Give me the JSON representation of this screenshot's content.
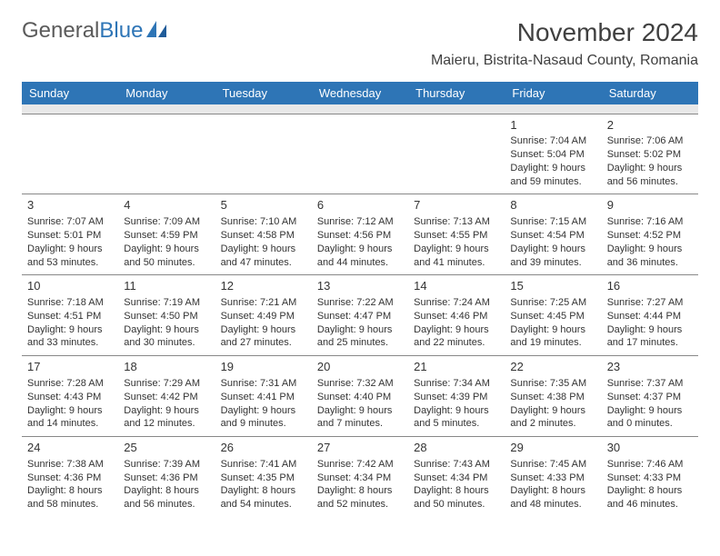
{
  "logo": {
    "text1": "General",
    "text2": "Blue"
  },
  "title": "November 2024",
  "location": "Maieru, Bistrita-Nasaud County, Romania",
  "colors": {
    "header_bg": "#2e75b6",
    "header_text": "#ffffff",
    "spacer_bg": "#e8e8e8",
    "border": "#888888",
    "text": "#333333",
    "logo_gray": "#5a5a5a",
    "logo_blue": "#2e75b6"
  },
  "day_labels": [
    "Sunday",
    "Monday",
    "Tuesday",
    "Wednesday",
    "Thursday",
    "Friday",
    "Saturday"
  ],
  "weeks": [
    [
      null,
      null,
      null,
      null,
      null,
      {
        "n": "1",
        "sr": "Sunrise: 7:04 AM",
        "ss": "Sunset: 5:04 PM",
        "dl": "Daylight: 9 hours and 59 minutes."
      },
      {
        "n": "2",
        "sr": "Sunrise: 7:06 AM",
        "ss": "Sunset: 5:02 PM",
        "dl": "Daylight: 9 hours and 56 minutes."
      }
    ],
    [
      {
        "n": "3",
        "sr": "Sunrise: 7:07 AM",
        "ss": "Sunset: 5:01 PM",
        "dl": "Daylight: 9 hours and 53 minutes."
      },
      {
        "n": "4",
        "sr": "Sunrise: 7:09 AM",
        "ss": "Sunset: 4:59 PM",
        "dl": "Daylight: 9 hours and 50 minutes."
      },
      {
        "n": "5",
        "sr": "Sunrise: 7:10 AM",
        "ss": "Sunset: 4:58 PM",
        "dl": "Daylight: 9 hours and 47 minutes."
      },
      {
        "n": "6",
        "sr": "Sunrise: 7:12 AM",
        "ss": "Sunset: 4:56 PM",
        "dl": "Daylight: 9 hours and 44 minutes."
      },
      {
        "n": "7",
        "sr": "Sunrise: 7:13 AM",
        "ss": "Sunset: 4:55 PM",
        "dl": "Daylight: 9 hours and 41 minutes."
      },
      {
        "n": "8",
        "sr": "Sunrise: 7:15 AM",
        "ss": "Sunset: 4:54 PM",
        "dl": "Daylight: 9 hours and 39 minutes."
      },
      {
        "n": "9",
        "sr": "Sunrise: 7:16 AM",
        "ss": "Sunset: 4:52 PM",
        "dl": "Daylight: 9 hours and 36 minutes."
      }
    ],
    [
      {
        "n": "10",
        "sr": "Sunrise: 7:18 AM",
        "ss": "Sunset: 4:51 PM",
        "dl": "Daylight: 9 hours and 33 minutes."
      },
      {
        "n": "11",
        "sr": "Sunrise: 7:19 AM",
        "ss": "Sunset: 4:50 PM",
        "dl": "Daylight: 9 hours and 30 minutes."
      },
      {
        "n": "12",
        "sr": "Sunrise: 7:21 AM",
        "ss": "Sunset: 4:49 PM",
        "dl": "Daylight: 9 hours and 27 minutes."
      },
      {
        "n": "13",
        "sr": "Sunrise: 7:22 AM",
        "ss": "Sunset: 4:47 PM",
        "dl": "Daylight: 9 hours and 25 minutes."
      },
      {
        "n": "14",
        "sr": "Sunrise: 7:24 AM",
        "ss": "Sunset: 4:46 PM",
        "dl": "Daylight: 9 hours and 22 minutes."
      },
      {
        "n": "15",
        "sr": "Sunrise: 7:25 AM",
        "ss": "Sunset: 4:45 PM",
        "dl": "Daylight: 9 hours and 19 minutes."
      },
      {
        "n": "16",
        "sr": "Sunrise: 7:27 AM",
        "ss": "Sunset: 4:44 PM",
        "dl": "Daylight: 9 hours and 17 minutes."
      }
    ],
    [
      {
        "n": "17",
        "sr": "Sunrise: 7:28 AM",
        "ss": "Sunset: 4:43 PM",
        "dl": "Daylight: 9 hours and 14 minutes."
      },
      {
        "n": "18",
        "sr": "Sunrise: 7:29 AM",
        "ss": "Sunset: 4:42 PM",
        "dl": "Daylight: 9 hours and 12 minutes."
      },
      {
        "n": "19",
        "sr": "Sunrise: 7:31 AM",
        "ss": "Sunset: 4:41 PM",
        "dl": "Daylight: 9 hours and 9 minutes."
      },
      {
        "n": "20",
        "sr": "Sunrise: 7:32 AM",
        "ss": "Sunset: 4:40 PM",
        "dl": "Daylight: 9 hours and 7 minutes."
      },
      {
        "n": "21",
        "sr": "Sunrise: 7:34 AM",
        "ss": "Sunset: 4:39 PM",
        "dl": "Daylight: 9 hours and 5 minutes."
      },
      {
        "n": "22",
        "sr": "Sunrise: 7:35 AM",
        "ss": "Sunset: 4:38 PM",
        "dl": "Daylight: 9 hours and 2 minutes."
      },
      {
        "n": "23",
        "sr": "Sunrise: 7:37 AM",
        "ss": "Sunset: 4:37 PM",
        "dl": "Daylight: 9 hours and 0 minutes."
      }
    ],
    [
      {
        "n": "24",
        "sr": "Sunrise: 7:38 AM",
        "ss": "Sunset: 4:36 PM",
        "dl": "Daylight: 8 hours and 58 minutes."
      },
      {
        "n": "25",
        "sr": "Sunrise: 7:39 AM",
        "ss": "Sunset: 4:36 PM",
        "dl": "Daylight: 8 hours and 56 minutes."
      },
      {
        "n": "26",
        "sr": "Sunrise: 7:41 AM",
        "ss": "Sunset: 4:35 PM",
        "dl": "Daylight: 8 hours and 54 minutes."
      },
      {
        "n": "27",
        "sr": "Sunrise: 7:42 AM",
        "ss": "Sunset: 4:34 PM",
        "dl": "Daylight: 8 hours and 52 minutes."
      },
      {
        "n": "28",
        "sr": "Sunrise: 7:43 AM",
        "ss": "Sunset: 4:34 PM",
        "dl": "Daylight: 8 hours and 50 minutes."
      },
      {
        "n": "29",
        "sr": "Sunrise: 7:45 AM",
        "ss": "Sunset: 4:33 PM",
        "dl": "Daylight: 8 hours and 48 minutes."
      },
      {
        "n": "30",
        "sr": "Sunrise: 7:46 AM",
        "ss": "Sunset: 4:33 PM",
        "dl": "Daylight: 8 hours and 46 minutes."
      }
    ]
  ]
}
